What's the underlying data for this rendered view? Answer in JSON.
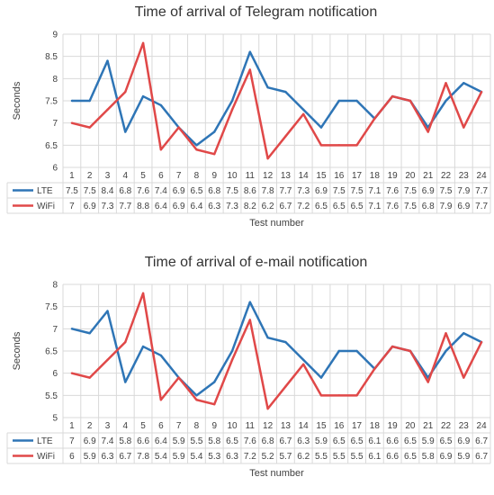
{
  "chart_data": [
    {
      "type": "line",
      "title": "Time of arrival of Telegram notification",
      "xlabel": "Test number",
      "ylabel": "Seconds",
      "ylim": [
        6,
        9
      ],
      "yticks": [
        "6",
        "6.5",
        "7",
        "7.5",
        "8",
        "8.5",
        "9"
      ],
      "categories": [
        "1",
        "2",
        "3",
        "4",
        "5",
        "6",
        "7",
        "8",
        "9",
        "10",
        "11",
        "12",
        "13",
        "14",
        "15",
        "16",
        "17",
        "18",
        "19",
        "20",
        "21",
        "22",
        "23",
        "24"
      ],
      "grid": true,
      "legend": "data-table",
      "series": [
        {
          "name": "LTE",
          "color": "#2e75b6",
          "values": [
            7.5,
            7.5,
            8.4,
            6.8,
            7.6,
            7.4,
            6.9,
            6.5,
            6.8,
            7.5,
            8.6,
            7.8,
            7.7,
            7.3,
            6.9,
            7.5,
            7.5,
            7.1,
            7.6,
            7.5,
            6.9,
            7.5,
            7.9,
            7.7
          ],
          "labels": [
            "7.5",
            "7.5",
            "8.4",
            "6.8",
            "7.6",
            "7.4",
            "6.9",
            "6.5",
            "6.8",
            "7.5",
            "8.6",
            "7.8",
            "7.7",
            "7.3",
            "6.9",
            "7.5",
            "7.5",
            "7.1",
            "7.6",
            "7.5",
            "6.9",
            "7.5",
            "7.9",
            "7.7"
          ]
        },
        {
          "name": "WiFi",
          "color": "#e04848",
          "values": [
            7,
            6.9,
            7.3,
            7.7,
            8.8,
            6.4,
            6.9,
            6.4,
            6.3,
            7.3,
            8.2,
            6.2,
            6.7,
            7.2,
            6.5,
            6.5,
            6.5,
            7.1,
            7.6,
            7.5,
            6.8,
            7.9,
            6.9,
            7.7
          ],
          "labels": [
            "7",
            "6.9",
            "7.3",
            "7.7",
            "8.8",
            "6.4",
            "6.9",
            "6.4",
            "6.3",
            "7.3",
            "8.2",
            "6.2",
            "6.7",
            "7.2",
            "6.5",
            "6.5",
            "6.5",
            "7.1",
            "7.6",
            "7.5",
            "6.8",
            "7.9",
            "6.9",
            "7.7"
          ]
        }
      ]
    },
    {
      "type": "line",
      "title": "Time of arrival of e-mail notification",
      "xlabel": "Test number",
      "ylabel": "Seconds",
      "ylim": [
        5,
        8
      ],
      "yticks": [
        "5",
        "5.5",
        "6",
        "6.5",
        "7",
        "7.5",
        "8"
      ],
      "categories": [
        "1",
        "2",
        "3",
        "4",
        "5",
        "6",
        "7",
        "8",
        "9",
        "10",
        "11",
        "12",
        "13",
        "14",
        "15",
        "16",
        "17",
        "18",
        "19",
        "20",
        "21",
        "22",
        "23",
        "24"
      ],
      "grid": true,
      "legend": "data-table",
      "series": [
        {
          "name": "LTE",
          "color": "#2e75b6",
          "values": [
            7,
            6.9,
            7.4,
            5.8,
            6.6,
            6.4,
            5.9,
            5.5,
            5.8,
            6.5,
            7.6,
            6.8,
            6.7,
            6.3,
            5.9,
            6.5,
            6.5,
            6.1,
            6.6,
            6.5,
            5.9,
            6.5,
            6.9,
            6.7
          ],
          "labels": [
            "7",
            "6.9",
            "7.4",
            "5.8",
            "6.6",
            "6.4",
            "5.9",
            "5.5",
            "5.8",
            "6.5",
            "7.6",
            "6.8",
            "6.7",
            "6.3",
            "5.9",
            "6.5",
            "6.5",
            "6.1",
            "6.6",
            "6.5",
            "5.9",
            "6.5",
            "6.9",
            "6.7"
          ]
        },
        {
          "name": "WiFi",
          "color": "#e04848",
          "values": [
            6,
            5.9,
            6.3,
            6.7,
            7.8,
            5.4,
            5.9,
            5.4,
            5.3,
            6.3,
            7.2,
            5.2,
            5.7,
            6.2,
            5.5,
            5.5,
            5.5,
            6.1,
            6.6,
            6.5,
            5.8,
            6.9,
            5.9,
            6.7
          ],
          "labels": [
            "6",
            "5.9",
            "6.3",
            "6.7",
            "7.8",
            "5.4",
            "5.9",
            "5.4",
            "5.3",
            "6.3",
            "7.2",
            "5.2",
            "5.7",
            "6.2",
            "5.5",
            "5.5",
            "5.5",
            "6.1",
            "6.6",
            "6.5",
            "5.8",
            "6.9",
            "5.9",
            "6.7"
          ]
        }
      ]
    }
  ]
}
